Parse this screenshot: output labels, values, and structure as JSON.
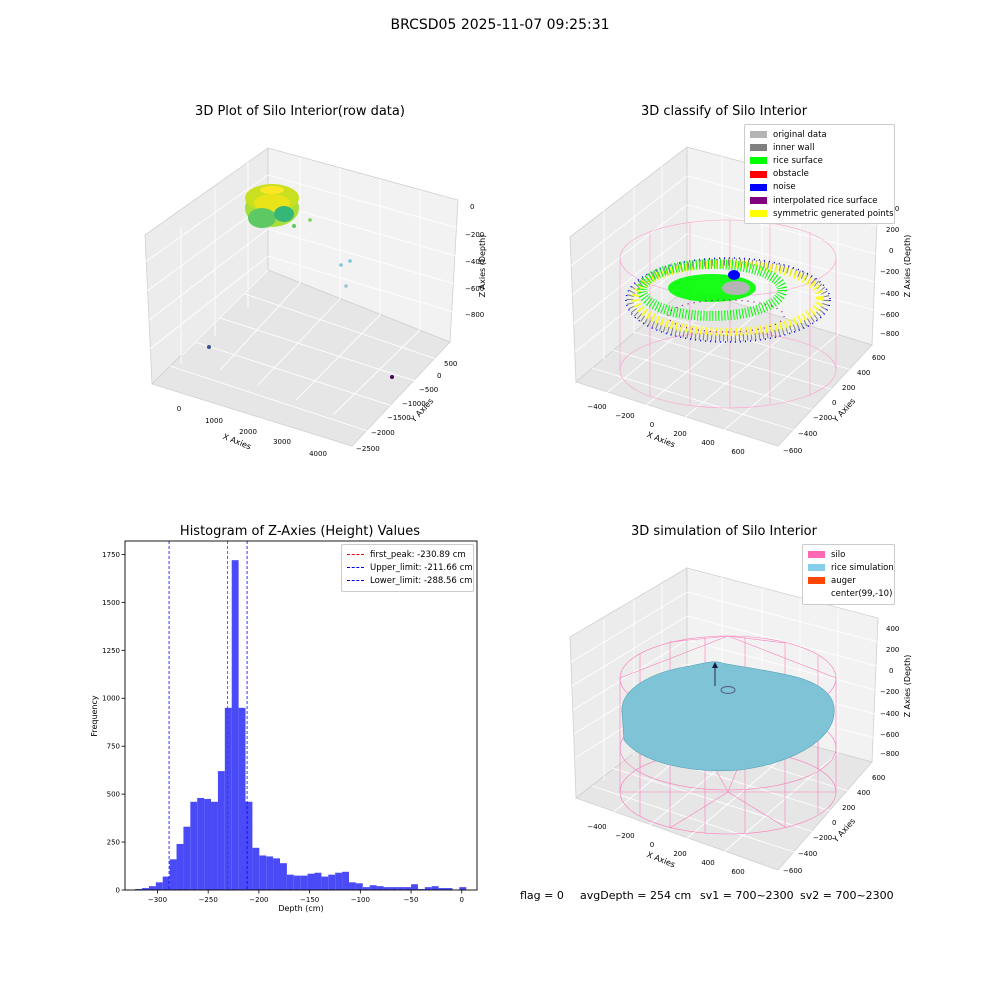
{
  "figure": {
    "suptitle": "BRCSD05 2025-11-07 09:25:31"
  },
  "chart_data": [
    {
      "type": "scatter",
      "title": "3D Plot of Silo Interior(row data)",
      "xlabel": "X Axies",
      "ylabel": "Y Axies",
      "zlabel": "Z Axies (Depth)",
      "x_ticks": [
        "0",
        "1000",
        "2000",
        "3000",
        "4000"
      ],
      "y_ticks": [
        "500",
        "0",
        "−500",
        "−1000",
        "−1500",
        "−2000",
        "−2500"
      ],
      "z_ticks": [
        "0",
        "−200",
        "−400",
        "−600",
        "−800"
      ],
      "colormap": "viridis",
      "colors": {
        "dense_cluster": "#9adb3a",
        "outlier_1": "#3b528b",
        "outlier_2": "#5ec962",
        "outlier_3": "#440154"
      }
    },
    {
      "type": "scatter",
      "title": "3D classify of Silo Interior",
      "xlabel": "X Axies",
      "ylabel": "Y Axies",
      "zlabel": "Z Axies (Depth)",
      "x_ticks": [
        "−400",
        "−200",
        "0",
        "200",
        "400",
        "600"
      ],
      "y_ticks": [
        "600",
        "400",
        "200",
        "0",
        "−200",
        "−400",
        "−600"
      ],
      "z_ticks": [
        "200",
        "0",
        "−200",
        "−400",
        "−600",
        "−800"
      ],
      "legend_position": "top-right",
      "legend": [
        {
          "label": "original data",
          "color": "#b4b4b4"
        },
        {
          "label": "inner wall",
          "color": "#808080"
        },
        {
          "label": "rice surface",
          "color": "#00ff00"
        },
        {
          "label": "obstacle",
          "color": "#ff0000"
        },
        {
          "label": "noise",
          "color": "#0000ff"
        },
        {
          "label": "interpolated rice surface",
          "color": "#800080"
        },
        {
          "label": "symmetric generated points",
          "color": "#ffff00"
        }
      ]
    },
    {
      "type": "bar",
      "title": "Histogram of Z-Axies (Height) Values",
      "xlabel": "Depth (cm)",
      "ylabel": "Frequency",
      "xlim": [
        -332,
        15
      ],
      "ylim": [
        0,
        1820
      ],
      "x_ticks": [
        -300,
        -250,
        -200,
        -150,
        -100,
        -50,
        0
      ],
      "x_tick_labels": [
        "−300",
        "−250",
        "−200",
        "−150",
        "−100",
        "−50",
        "0"
      ],
      "y_ticks": [
        0,
        250,
        500,
        750,
        1000,
        1250,
        1500,
        1750
      ],
      "y_tick_labels": [
        "0",
        "250",
        "500",
        "750",
        "1000",
        "1250",
        "1500",
        "1750"
      ],
      "bin_start": -322,
      "bin_width": 6.8,
      "values": [
        5,
        10,
        20,
        40,
        70,
        160,
        240,
        330,
        460,
        480,
        475,
        460,
        620,
        950,
        1720,
        950,
        460,
        220,
        180,
        175,
        165,
        140,
        80,
        75,
        75,
        85,
        90,
        70,
        80,
        90,
        95,
        40,
        35,
        15,
        25,
        20,
        15,
        15,
        15,
        15,
        30,
        5,
        15,
        20,
        10,
        10,
        0,
        15
      ],
      "bar_color": "#4a4af7",
      "legend_position": "top-right",
      "lines": [
        {
          "label": "first_peak: -230.89 cm",
          "x": -230.89,
          "color": "#ff0000"
        },
        {
          "label": "Upper_limit: -211.66 cm",
          "x": -211.66,
          "color": "#0000ff"
        },
        {
          "label": "Lower_limit: -288.56 cm",
          "x": -288.56,
          "color": "#0000ff"
        }
      ]
    },
    {
      "type": "scatter",
      "title": "3D simulation of Silo Interior",
      "xlabel": "X Axies",
      "ylabel": "Y Axies",
      "zlabel": "Z Axies (Depth)",
      "x_ticks": [
        "−400",
        "−200",
        "0",
        "200",
        "400",
        "600"
      ],
      "y_ticks": [
        "600",
        "400",
        "200",
        "0",
        "−200",
        "−400",
        "−600"
      ],
      "z_ticks": [
        "400",
        "200",
        "0",
        "−200",
        "−400",
        "−600",
        "−800"
      ],
      "legend_position": "top-right",
      "legend": [
        {
          "label": "silo",
          "color": "#ff69b4"
        },
        {
          "label": "rice simulation",
          "color": "#87ceeb"
        },
        {
          "label": "auger",
          "color": "#ff4500"
        },
        {
          "label": "center(99,-10)",
          "color": "#ffffff"
        }
      ]
    }
  ],
  "status": {
    "flag": "flag = 0",
    "avg_depth": "avgDepth = 254 cm",
    "sv1": "sv1 = 700~2300",
    "sv2": "sv2 = 700~2300"
  }
}
